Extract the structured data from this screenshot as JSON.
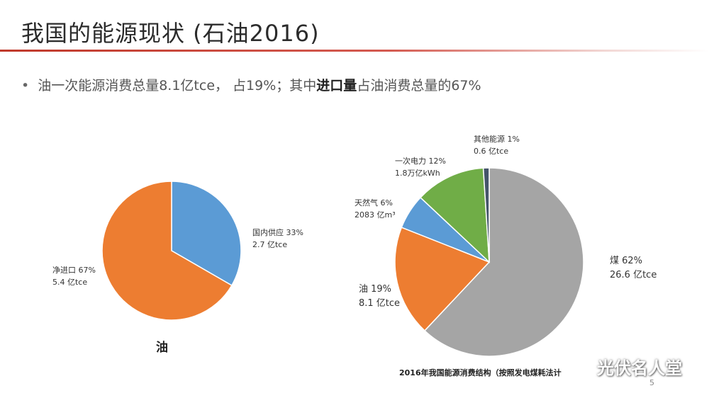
{
  "slide": {
    "title": "我国的能源现状 (石油2016)",
    "bullet": {
      "pre": "油一次能源消费总量8.1亿tce， 占19%；其中",
      "bold": "进口量",
      "post": "占油消费总量的67%"
    },
    "page_number": "5",
    "watermark": "光伏名人堂",
    "accent_color": "#c0392b"
  },
  "chart_data": [
    {
      "type": "pie",
      "title": "油",
      "slices": [
        {
          "name": "国内供应",
          "percent_label": "33%",
          "value": 2.7,
          "value_label": "2.7 亿tce",
          "color": "#5b9bd5"
        },
        {
          "name": "净进口",
          "percent_label": "67%",
          "value": 5.4,
          "value_label": "5.4 亿tce",
          "color": "#ed7d31"
        }
      ]
    },
    {
      "type": "pie",
      "title": "2016年我国能源消费结构（按照发电煤耗法计",
      "slices": [
        {
          "name": "煤",
          "percent_label": "62%",
          "value": 62,
          "value_label": "26.6 亿tce",
          "color": "#a5a5a5"
        },
        {
          "name": "油",
          "percent_label": "19%",
          "value": 19,
          "value_label": "8.1 亿tce",
          "color": "#ed7d31"
        },
        {
          "name": "天然气",
          "percent_label": "6%",
          "value": 6,
          "value_label": "2083 亿m³",
          "color": "#5b9bd5"
        },
        {
          "name": "一次电力",
          "percent_label": "12%",
          "value": 12,
          "value_label": "1.8万亿kWh",
          "color": "#70ad47"
        },
        {
          "name": "其他能源",
          "percent_label": "1%",
          "value": 1,
          "value_label": "0.6 亿tce",
          "color": "#44546a"
        }
      ]
    }
  ]
}
